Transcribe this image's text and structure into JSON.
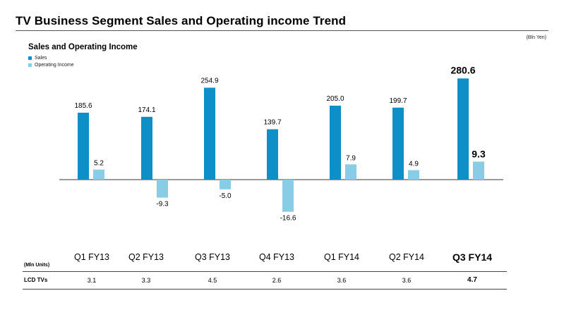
{
  "page": {
    "title": "TV Business Segment Sales and Operating income Trend",
    "unit_note": "(Bln Yen)"
  },
  "colors": {
    "sales": "#0E8FC7",
    "operating_income": "#88CCE6",
    "axis": "#333333"
  },
  "chart_data": {
    "type": "bar",
    "title": "Sales and Operating Income",
    "categories": [
      "Q1 FY13",
      "Q2 FY13",
      "Q3 FY13",
      "Q4 FY13",
      "Q1 FY14",
      "Q2 FY14",
      "Q3 FY14"
    ],
    "series": [
      {
        "name": "Sales",
        "values": [
          185.6,
          174.1,
          254.9,
          139.7,
          205.0,
          199.7,
          280.6
        ]
      },
      {
        "name": "Operating Income",
        "values": [
          5.2,
          -9.3,
          -5.0,
          -16.6,
          7.9,
          4.9,
          9.3
        ]
      }
    ],
    "value_labels": {
      "Sales": [
        "185.6",
        "174.1",
        "254.9",
        "139.7",
        "205.0",
        "199.7",
        "280.6"
      ],
      "Operating Income": [
        "5.2",
        "-9.3",
        "-5.0",
        "-16.6",
        "7.9",
        "4.9",
        "9.3"
      ]
    },
    "emphasized_category": "Q3 FY14",
    "legend_position": "top-left",
    "grid": false
  },
  "table": {
    "units_label": "(Mln Units)",
    "row_label": "LCD TVs",
    "values": [
      "3.1",
      "3.3",
      "4.5",
      "2.6",
      "3.6",
      "3.6",
      "4.7"
    ]
  }
}
